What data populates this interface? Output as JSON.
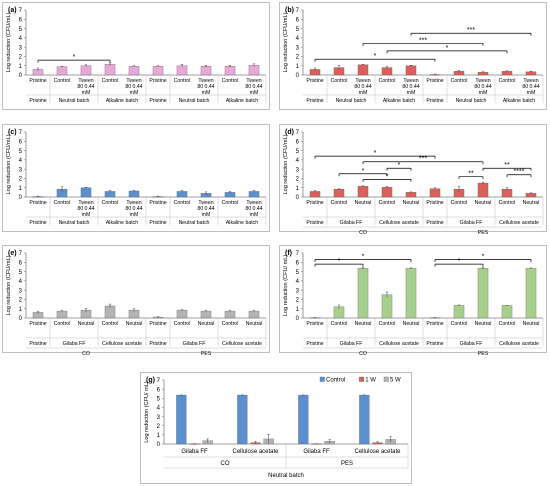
{
  "figure": {
    "y_axis_label": "Log reduction (CFU/mL)",
    "y_ticks": [
      "0",
      "1",
      "2",
      "3",
      "4",
      "5",
      "6",
      "7"
    ]
  },
  "colors": {
    "pink": "#e6a8d7",
    "blue": "#5b8fd0",
    "red": "#d9605c",
    "grey": "#b3b3b3",
    "green": "#a8d08d",
    "axis": "#7f7f7f",
    "text": "#000000"
  },
  "chart_data": [
    {
      "panel": "(a)",
      "type": "bar",
      "ylim": [
        0,
        7
      ],
      "color": "pink",
      "categories": [
        "Pristine",
        "Control",
        "Tween 80 0.44 mM",
        "Control",
        "Tween 80 0.44 mM",
        "Pristine",
        "Control",
        "Tween 80 0.44 mM",
        "Control",
        "Tween 80 0.44 mM"
      ],
      "values": [
        0.6,
        0.9,
        1.0,
        1.15,
        0.95,
        0.95,
        1.0,
        0.95,
        0.95,
        1.05
      ],
      "errors": [
        0.15,
        0.05,
        0.1,
        0.15,
        0.05,
        0.05,
        0.15,
        0.1,
        0.1,
        0.15
      ],
      "groups": [
        {
          "label": "Pristine",
          "from": 0,
          "to": 0
        },
        {
          "label": "Neutral batch",
          "from": 1,
          "to": 2
        },
        {
          "label": "Alkaline batch",
          "from": 3,
          "to": 4
        },
        {
          "label": "Pristine",
          "from": 5,
          "to": 5
        },
        {
          "label": "Neutral batch",
          "from": 6,
          "to": 7
        },
        {
          "label": "Alkaline batch",
          "from": 8,
          "to": 9
        }
      ],
      "outer_groups": [],
      "legend": [],
      "sig": [
        {
          "a": 0,
          "b": 3,
          "label": "*",
          "y": 1.6
        }
      ]
    },
    {
      "panel": "(b)",
      "type": "bar",
      "ylim": [
        0,
        7
      ],
      "color": "red",
      "categories": [
        "Pristine",
        "Control",
        "Tween 80 0.44 mM",
        "Control",
        "Tween 80 0.44 mM",
        "Pristine",
        "Control",
        "Tween 80 0.44 mM",
        "Control",
        "Tween 80 0.44 mM"
      ],
      "values": [
        0.6,
        0.8,
        1.1,
        0.8,
        1.0,
        0.05,
        0.4,
        0.3,
        0.4,
        0.35
      ],
      "errors": [
        0.15,
        0.25,
        0.05,
        0.15,
        0.05,
        0.05,
        0.1,
        0.05,
        0.05,
        0.05
      ],
      "groups": [
        {
          "label": "Pristine",
          "from": 0,
          "to": 0
        },
        {
          "label": "Neutral batch",
          "from": 1,
          "to": 2
        },
        {
          "label": "Alkaline batch",
          "from": 3,
          "to": 4
        },
        {
          "label": "Pristine",
          "from": 5,
          "to": 5
        },
        {
          "label": "Neutral batch",
          "from": 6,
          "to": 7
        },
        {
          "label": "Alkaline batch",
          "from": 8,
          "to": 9
        }
      ],
      "outer_groups": [],
      "legend": [],
      "sig": [
        {
          "a": 0,
          "b": 5,
          "label": "*",
          "y": 1.7
        },
        {
          "a": 3,
          "b": 8,
          "label": "*",
          "y": 2.6
        },
        {
          "a": 2,
          "b": 7,
          "label": "***",
          "y": 3.4
        },
        {
          "a": 4,
          "b": 9,
          "label": "***",
          "y": 4.5
        }
      ]
    },
    {
      "panel": "(c)",
      "type": "bar",
      "ylim": [
        0,
        7
      ],
      "color": "blue",
      "categories": [
        "Pristine",
        "Control",
        "Tween 80 0.44 mM",
        "Control",
        "Tween 80 0.44 mM",
        "Pristine",
        "Control",
        "Tween 80 0.44 mM",
        "Control",
        "Tween 80 0.44 mM"
      ],
      "values": [
        0.05,
        0.85,
        1.0,
        0.6,
        0.65,
        0.05,
        0.6,
        0.4,
        0.5,
        0.6
      ],
      "errors": [
        0.05,
        0.25,
        0.05,
        0.1,
        0.05,
        0.05,
        0.1,
        0.15,
        0.1,
        0.1
      ],
      "groups": [
        {
          "label": "Pristine",
          "from": 0,
          "to": 0
        },
        {
          "label": "Neutral batch",
          "from": 1,
          "to": 2
        },
        {
          "label": "Alkaline batch",
          "from": 3,
          "to": 4
        },
        {
          "label": "Pristine",
          "from": 5,
          "to": 5
        },
        {
          "label": "Neutral batch",
          "from": 6,
          "to": 7
        },
        {
          "label": "Alkaline batch",
          "from": 8,
          "to": 9
        }
      ],
      "outer_groups": [],
      "legend": [],
      "sig": []
    },
    {
      "panel": "(d)",
      "type": "bar",
      "ylim": [
        0,
        7
      ],
      "color": "red",
      "categories": [
        "Pristine",
        "Control",
        "Neutral",
        "Control",
        "Neutral",
        "Pristine",
        "Control",
        "Neutral",
        "Control",
        "Neutral"
      ],
      "values": [
        0.6,
        0.85,
        1.15,
        1.05,
        0.5,
        0.9,
        0.85,
        1.5,
        0.85,
        0.4
      ],
      "errors": [
        0.1,
        0.05,
        0.05,
        0.1,
        0.05,
        0.1,
        0.3,
        0.1,
        0.15,
        0.05
      ],
      "groups": [
        {
          "label": "Pristine",
          "from": 0,
          "to": 0
        },
        {
          "label": "Gilaba FF",
          "from": 1,
          "to": 2
        },
        {
          "label": "Cellulose acetate",
          "from": 3,
          "to": 4
        },
        {
          "label": "Pristine",
          "from": 5,
          "to": 5
        },
        {
          "label": "Gilaba FF",
          "from": 6,
          "to": 7
        },
        {
          "label": "Cellulose acetate",
          "from": 8,
          "to": 9
        }
      ],
      "outer_groups": [
        {
          "label": "CO",
          "from": 0,
          "to": 4
        },
        {
          "label": "PES",
          "from": 5,
          "to": 9
        }
      ],
      "legend": [],
      "sig": [
        {
          "a": 2,
          "b": 4,
          "label": "*",
          "y": 1.9
        },
        {
          "a": 1,
          "b": 3,
          "label": "*",
          "y": 2.5
        },
        {
          "a": 3,
          "b": 4,
          "label": "*",
          "y": 3.1
        },
        {
          "a": 0,
          "b": 5,
          "label": "*",
          "y": 4.4
        },
        {
          "a": 2,
          "b": 7,
          "label": "***",
          "y": 3.8
        },
        {
          "a": 6,
          "b": 7,
          "label": "**",
          "y": 2.2
        },
        {
          "a": 7,
          "b": 9,
          "label": "**",
          "y": 3.1
        },
        {
          "a": 8,
          "b": 9,
          "label": "****",
          "y": 2.4
        }
      ]
    },
    {
      "panel": "(e)",
      "type": "bar",
      "ylim": [
        0,
        7
      ],
      "color": "grey",
      "categories": [
        "Pristine",
        "Control",
        "Neutral",
        "Control",
        "Neutral",
        "Pristine",
        "Control",
        "Neutral",
        "Control",
        "Neutral"
      ],
      "values": [
        0.6,
        0.75,
        0.85,
        1.3,
        0.85,
        0.1,
        0.85,
        0.75,
        0.75,
        0.75
      ],
      "errors": [
        0.1,
        0.05,
        0.2,
        0.2,
        0.15,
        0.05,
        0.05,
        0.05,
        0.05,
        0.05
      ],
      "groups": [
        {
          "label": "Pristine",
          "from": 0,
          "to": 0
        },
        {
          "label": "Gilaba FF",
          "from": 1,
          "to": 2
        },
        {
          "label": "Cellulose acetate",
          "from": 3,
          "to": 4
        },
        {
          "label": "Pristine",
          "from": 5,
          "to": 5
        },
        {
          "label": "Gilaba FF",
          "from": 6,
          "to": 7
        },
        {
          "label": "Cellulose acetate",
          "from": 8,
          "to": 9
        }
      ],
      "outer_groups": [
        {
          "label": "CO",
          "from": 0,
          "to": 4
        },
        {
          "label": "PES",
          "from": 5,
          "to": 9
        }
      ],
      "legend": [],
      "sig": []
    },
    {
      "panel": "(f)",
      "type": "bar",
      "ylim": [
        0,
        7
      ],
      "color": "green",
      "categories": [
        "Pristine",
        "Control",
        "Neutral",
        "Control",
        "Neutral",
        "Pristine",
        "Control",
        "Neutral",
        "Control",
        "Neutral"
      ],
      "values": [
        0.05,
        1.2,
        5.35,
        2.5,
        5.35,
        0.05,
        1.35,
        5.35,
        1.35,
        5.35
      ],
      "errors": [
        0.02,
        0.2,
        0.1,
        0.3,
        0.05,
        0.02,
        0.05,
        0.1,
        0.02,
        0.05
      ],
      "groups": [
        {
          "label": "Pristine",
          "from": 0,
          "to": 0
        },
        {
          "label": "Gilaba FF",
          "from": 1,
          "to": 2
        },
        {
          "label": "Cellulose acetate",
          "from": 3,
          "to": 4
        },
        {
          "label": "Pristine",
          "from": 5,
          "to": 5
        },
        {
          "label": "Gilaba FF",
          "from": 6,
          "to": 7
        },
        {
          "label": "Cellulose acetate",
          "from": 8,
          "to": 9
        }
      ],
      "outer_groups": [
        {
          "label": "CO",
          "from": 0,
          "to": 4
        },
        {
          "label": "PES",
          "from": 5,
          "to": 9
        }
      ],
      "legend": [],
      "ylabel_override": "Log reduction (CFU/ mL)",
      "sig": [
        {
          "a": 0,
          "b": 2,
          "label": "*",
          "y": 5.8
        },
        {
          "a": 0,
          "b": 4,
          "label": "*",
          "y": 6.3
        },
        {
          "a": 5,
          "b": 7,
          "label": "*",
          "y": 5.8
        },
        {
          "a": 5,
          "b": 9,
          "label": "*",
          "y": 6.3
        }
      ]
    },
    {
      "panel": "(g)",
      "type": "bar",
      "ylim": [
        0,
        7
      ],
      "ylabel_override": "Log reduction (CFU/ mL)",
      "categories": [
        "Gilaba FF",
        "Cellulose acetate",
        "Gilaba FF",
        "Cellulose acetate"
      ],
      "series": [
        {
          "name": "Control",
          "color": "blue",
          "values": [
            5.35,
            5.35,
            5.35,
            5.35
          ],
          "errors": [
            0.02,
            0.02,
            0.02,
            0.02
          ]
        },
        {
          "name": "1 W",
          "color": "red",
          "values": [
            0.02,
            0.15,
            0.02,
            0.15
          ],
          "errors": [
            0.02,
            0.15,
            0.02,
            0.1
          ]
        },
        {
          "name": "5 W",
          "color": "grey",
          "values": [
            0.35,
            0.55,
            0.3,
            0.5
          ],
          "errors": [
            0.2,
            0.5,
            0.2,
            0.3
          ]
        }
      ],
      "outer_groups": [
        {
          "label": "CO",
          "from": 0,
          "to": 1
        },
        {
          "label": "PES",
          "from": 2,
          "to": 3
        }
      ],
      "bottom_label": "Neutral batch",
      "legend": [
        "Control",
        "1 W",
        "5 W"
      ]
    }
  ]
}
